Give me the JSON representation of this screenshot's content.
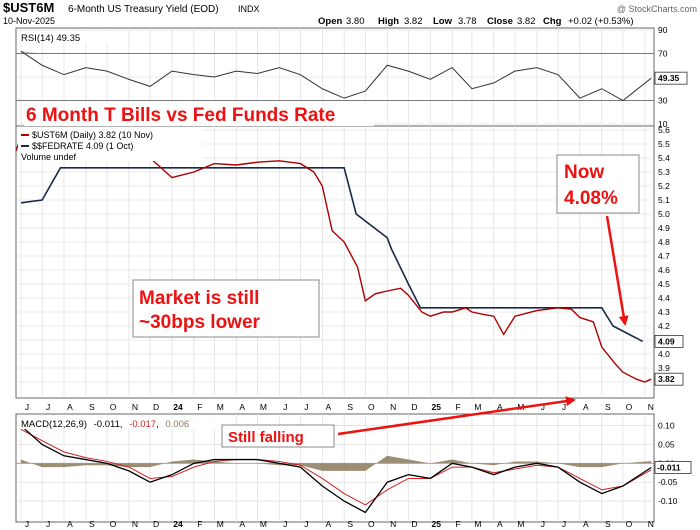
{
  "header": {
    "symbol": "$UST6M",
    "name": "6-Month US Treasury Yield (EOD)",
    "exchange": "INDX",
    "date": "10-Nov-2025",
    "watermark": "@ StockCharts.com",
    "open_label": "Open",
    "open": "3.80",
    "high_label": "High",
    "high": "3.82",
    "low_label": "Low",
    "low": "3.78",
    "close_label": "Close",
    "close": "3.82",
    "chg_label": "Chg",
    "chg": "+0.02 (+0.53%)"
  },
  "annotations": {
    "title": "6 Month T Bills vs Fed Funds Rate",
    "market_line1": "Market is still",
    "market_line2": "~30bps lower",
    "now_line1": "Now",
    "now_line2": "4.08%",
    "still_falling": "Still falling"
  },
  "colors": {
    "accent_red": "#ee1111",
    "price_line": "#aa0000",
    "fed_line": "#1a2a4a",
    "rsi_line": "#333333",
    "rsi_fill_over": "#c0c0c0",
    "rsi_fill_under": "#b8a48a",
    "macd_line": "#000000",
    "signal_line": "#cc2222",
    "hist_fill": "#8a7a5c",
    "grid": "#d8d8d8"
  },
  "chart_data": [
    {
      "type": "line",
      "panel": "rsi",
      "legend": "RSI(14) 49.35",
      "current_label": "49.35",
      "ylim": [
        10,
        90
      ],
      "y_ticks": [
        "90",
        "70",
        "50",
        "30",
        "10"
      ],
      "levels": [
        70,
        30
      ],
      "x": [
        "2023-06-01",
        "2023-07-01",
        "2023-08-01",
        "2023-09-01",
        "2023-10-01",
        "2023-11-01",
        "2023-12-01",
        "2024-01-01",
        "2024-02-01",
        "2024-03-01",
        "2024-04-01",
        "2024-05-01",
        "2024-06-01",
        "2024-07-01",
        "2024-08-01",
        "2024-09-01",
        "2024-10-01",
        "2024-11-01",
        "2024-12-01",
        "2025-01-01",
        "2025-02-01",
        "2025-03-01",
        "2025-04-01",
        "2025-05-01",
        "2025-06-01",
        "2025-07-01",
        "2025-08-01",
        "2025-09-01",
        "2025-10-01",
        "2025-11-10"
      ],
      "values": [
        72,
        60,
        52,
        58,
        55,
        48,
        42,
        55,
        52,
        50,
        55,
        53,
        58,
        52,
        40,
        32,
        38,
        60,
        55,
        48,
        58,
        40,
        45,
        55,
        58,
        52,
        32,
        40,
        30,
        49
      ]
    },
    {
      "type": "line",
      "panel": "price",
      "ylim": [
        3.7,
        5.6
      ],
      "y_ticks": [
        "5.6",
        "5.5",
        "5.4",
        "5.3",
        "5.2",
        "5.1",
        "5.0",
        "4.9",
        "4.8",
        "4.7",
        "4.6",
        "4.5",
        "4.4",
        "4.3",
        "4.2",
        "4.1",
        "4.0",
        "3.9",
        "3.8"
      ],
      "x_ticks": [
        "J",
        "J",
        "A",
        "S",
        "O",
        "N",
        "D",
        "24",
        "F",
        "M",
        "A",
        "M",
        "J",
        "J",
        "A",
        "S",
        "O",
        "N",
        "D",
        "25",
        "F",
        "M",
        "A",
        "M",
        "J",
        "J",
        "A",
        "S",
        "O",
        "N"
      ],
      "legend": [
        "$UST6M (Daily) 3.82 (10 Nov)",
        "$$FEDRATE 4.09 (1 Oct)",
        "Volume undef"
      ],
      "series": [
        {
          "name": "$UST6M (Daily) 3.82 (10 Nov)",
          "current_label": "3.82",
          "x": [
            "2023-05-25",
            "2023-06-01",
            "2023-07-01",
            "2023-08-01",
            "2023-09-01",
            "2023-10-01",
            "2023-11-01",
            "2023-12-01",
            "2024-01-01",
            "2024-02-01",
            "2024-03-01",
            "2024-04-01",
            "2024-05-01",
            "2024-06-01",
            "2024-07-01",
            "2024-07-20",
            "2024-08-01",
            "2024-08-15",
            "2024-09-01",
            "2024-09-20",
            "2024-10-01",
            "2024-10-15",
            "2024-11-01",
            "2024-11-20",
            "2024-12-01",
            "2024-12-20",
            "2025-01-01",
            "2025-01-20",
            "2025-02-01",
            "2025-02-20",
            "2025-03-01",
            "2025-03-20",
            "2025-04-01",
            "2025-04-15",
            "2025-05-01",
            "2025-06-01",
            "2025-07-01",
            "2025-07-20",
            "2025-08-01",
            "2025-08-20",
            "2025-09-01",
            "2025-09-20",
            "2025-10-01",
            "2025-10-20",
            "2025-11-01",
            "2025-11-10"
          ],
          "values": [
            5.45,
            5.55,
            5.5,
            5.52,
            5.53,
            5.58,
            5.48,
            5.4,
            5.26,
            5.3,
            5.36,
            5.35,
            5.37,
            5.38,
            5.36,
            5.3,
            5.2,
            4.88,
            4.8,
            4.62,
            4.38,
            4.43,
            4.45,
            4.47,
            4.42,
            4.3,
            4.27,
            4.3,
            4.3,
            4.33,
            4.3,
            4.28,
            4.27,
            4.14,
            4.27,
            4.31,
            4.33,
            4.32,
            4.26,
            4.23,
            4.05,
            3.93,
            3.87,
            3.82,
            3.8,
            3.82
          ]
        },
        {
          "name": "$$FEDRATE 4.09 (1 Oct)",
          "current_label": "4.09",
          "x": [
            "2023-06-01",
            "2023-07-01",
            "2023-07-27",
            "2024-09-01",
            "2024-09-18",
            "2024-11-01",
            "2024-11-07",
            "2024-12-01",
            "2024-12-18",
            "2025-09-01",
            "2025-09-17",
            "2025-10-29"
          ],
          "values": [
            5.08,
            5.1,
            5.33,
            5.33,
            5.0,
            4.83,
            4.75,
            4.5,
            4.33,
            4.33,
            4.2,
            4.09
          ]
        }
      ]
    },
    {
      "type": "line",
      "panel": "macd",
      "legend_label": "MACD(12,26,9)",
      "legend_macd": "-0.011",
      "legend_signal": "-0.017",
      "legend_hist": "0.006",
      "current_label": "-0.011",
      "ylim": [
        -0.15,
        0.12
      ],
      "y_ticks": [
        "0.10",
        "0.05",
        "0.00",
        "-0.05",
        "-0.10"
      ],
      "x": [
        "2023-06-01",
        "2023-07-01",
        "2023-08-01",
        "2023-09-01",
        "2023-10-01",
        "2023-11-01",
        "2023-12-01",
        "2024-01-01",
        "2024-02-01",
        "2024-03-01",
        "2024-04-01",
        "2024-05-01",
        "2024-06-01",
        "2024-07-01",
        "2024-08-01",
        "2024-09-01",
        "2024-10-01",
        "2024-11-01",
        "2024-12-01",
        "2025-01-01",
        "2025-02-01",
        "2025-03-01",
        "2025-04-01",
        "2025-05-01",
        "2025-06-01",
        "2025-07-01",
        "2025-08-01",
        "2025-09-01",
        "2025-10-01",
        "2025-11-10"
      ],
      "macd": [
        0.1,
        0.05,
        0.02,
        0.01,
        0.0,
        -0.02,
        -0.05,
        -0.03,
        0.0,
        0.01,
        0.01,
        0.01,
        0.0,
        -0.01,
        -0.06,
        -0.1,
        -0.13,
        -0.05,
        -0.03,
        -0.04,
        0.0,
        -0.01,
        -0.03,
        -0.01,
        0.0,
        -0.01,
        -0.05,
        -0.08,
        -0.06,
        -0.011
      ],
      "signal": [
        0.09,
        0.06,
        0.03,
        0.015,
        0.005,
        -0.01,
        -0.04,
        -0.035,
        -0.01,
        0.005,
        0.01,
        0.01,
        0.005,
        -0.005,
        -0.04,
        -0.08,
        -0.11,
        -0.07,
        -0.04,
        -0.04,
        -0.01,
        -0.01,
        -0.025,
        -0.015,
        -0.005,
        -0.01,
        -0.04,
        -0.07,
        -0.06,
        -0.017
      ]
    }
  ]
}
